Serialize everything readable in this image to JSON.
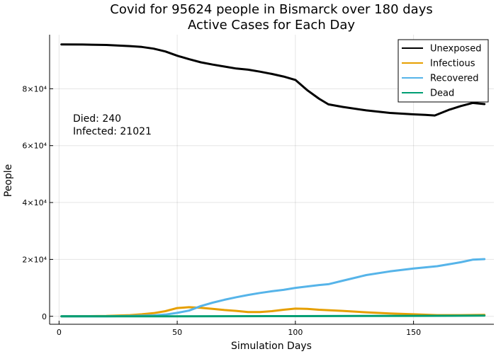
{
  "chart_data": {
    "type": "line",
    "title_line1": "Covid for 95624 people in Bismarck over 180 days",
    "title_line2": "Active Cases for Each Day",
    "xlabel": "Simulation Days",
    "ylabel": "People",
    "xlim": [
      -4,
      184
    ],
    "ylim": [
      -2800,
      99000
    ],
    "x_ticks": [
      0,
      50,
      100,
      150
    ],
    "y_ticks": [
      0,
      20000,
      40000,
      60000,
      80000
    ],
    "y_tick_labels": [
      "0",
      "2×10⁴",
      "4×10⁴",
      "6×10⁴",
      "8×10⁴"
    ],
    "grid": true,
    "legend_position": "top-right",
    "annotations": [
      "Died: 240",
      "Infected: 21021"
    ],
    "colors": {
      "Unexposed": "#000000",
      "Infectious": "#e69f00",
      "Recovered": "#56b4e9",
      "Dead": "#009e73"
    },
    "series": [
      {
        "name": "Unexposed",
        "x": [
          1,
          10,
          20,
          30,
          35,
          40,
          45,
          50,
          55,
          60,
          65,
          70,
          75,
          80,
          85,
          90,
          95,
          100,
          105,
          110,
          114,
          120,
          130,
          140,
          150,
          155,
          159,
          165,
          170,
          175,
          180
        ],
        "values": [
          95600,
          95550,
          95400,
          95000,
          94700,
          94100,
          93100,
          91600,
          90400,
          89300,
          88500,
          87800,
          87100,
          86700,
          86000,
          85200,
          84300,
          83100,
          79500,
          76500,
          74500,
          73600,
          72400,
          71500,
          71000,
          70800,
          70600,
          72600,
          73900,
          75000,
          74600
        ]
      },
      {
        "name": "Infectious",
        "x": [
          1,
          20,
          30,
          35,
          40,
          45,
          50,
          55,
          60,
          65,
          70,
          75,
          80,
          85,
          90,
          95,
          100,
          105,
          110,
          120,
          130,
          140,
          150,
          160,
          170,
          180
        ],
        "values": [
          0,
          100,
          400,
          700,
          1100,
          1800,
          2900,
          3200,
          3000,
          2600,
          2200,
          1900,
          1500,
          1500,
          1800,
          2300,
          2700,
          2600,
          2300,
          1900,
          1400,
          1000,
          700,
          400,
          400,
          500
        ]
      },
      {
        "name": "Recovered",
        "x": [
          1,
          20,
          30,
          40,
          45,
          50,
          55,
          60,
          65,
          70,
          75,
          80,
          85,
          90,
          95,
          100,
          105,
          110,
          114,
          120,
          130,
          140,
          150,
          160,
          170,
          175,
          180
        ],
        "values": [
          0,
          0,
          100,
          300,
          600,
          1200,
          2000,
          3600,
          4800,
          5800,
          6700,
          7500,
          8200,
          8800,
          9300,
          10000,
          10500,
          11000,
          11300,
          12500,
          14500,
          15800,
          16800,
          17600,
          19000,
          19900,
          20100
        ]
      },
      {
        "name": "Dead",
        "x": [
          1,
          50,
          100,
          150,
          180
        ],
        "values": [
          0,
          20,
          60,
          150,
          240
        ]
      }
    ]
  }
}
